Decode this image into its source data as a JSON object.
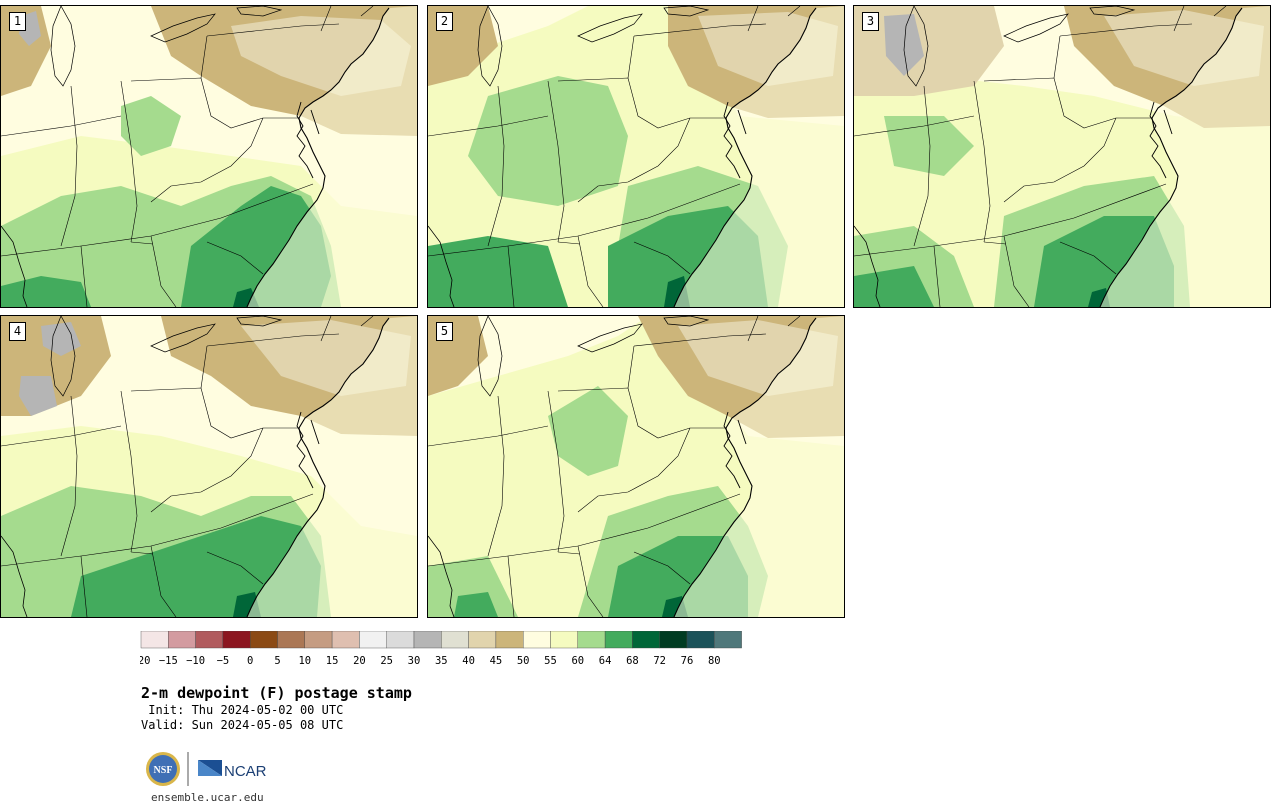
{
  "colors": {
    "ocean_fill": "#fffde0",
    "state_line": "#000000",
    "dry_tan": "#ccb57a",
    "tan_light": "#e1d4ad",
    "pale_yellow": "#fffde0",
    "light_yellow": "#f5fbc0",
    "light_green": "#a5db8e",
    "mid_green": "#43ab5d",
    "dark_green": "#006638",
    "gray": "#b5b5b5"
  },
  "panels": [
    {
      "label": "1"
    },
    {
      "label": "2"
    },
    {
      "label": "3"
    },
    {
      "label": "4"
    },
    {
      "label": "5"
    }
  ],
  "colorbar": {
    "units": "F",
    "ticks": [
      "−20",
      "−15",
      "−10",
      "−5",
      "0",
      "5",
      "10",
      "15",
      "20",
      "25",
      "30",
      "35",
      "40",
      "45",
      "50",
      "55",
      "60",
      "64",
      "68",
      "72",
      "76",
      "80"
    ],
    "colors": [
      "#f4e6e6",
      "#d39ba0",
      "#b15b5e",
      "#8c1620",
      "#8b4a14",
      "#ab7755",
      "#c59c82",
      "#dfbfb0",
      "#f1f1f1",
      "#dbdbdb",
      "#b5b5b5",
      "#e0e0d2",
      "#e1d4ad",
      "#ccb57a",
      "#fffde0",
      "#f5fbc0",
      "#a5db8e",
      "#43ab5d",
      "#006638",
      "#003c22",
      "#1b5259",
      "#4f787b"
    ]
  },
  "title": "2-m dewpoint (F) postage stamp",
  "init": " Init: Thu 2024-05-02 00 UTC",
  "valid": "Valid: Sun 2024-05-05 08 UTC",
  "logos": {
    "nsf_text": "NSF",
    "ncar_text": "NCAR"
  },
  "footer_url": "ensemble.ucar.edu"
}
